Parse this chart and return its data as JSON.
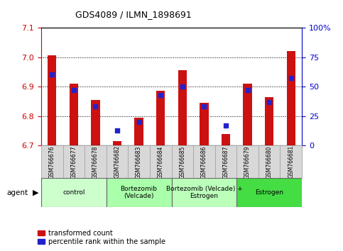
{
  "title": "GDS4089 / ILMN_1898691",
  "samples": [
    "GSM766676",
    "GSM766677",
    "GSM766678",
    "GSM766682",
    "GSM766683",
    "GSM766684",
    "GSM766685",
    "GSM766686",
    "GSM766687",
    "GSM766679",
    "GSM766680",
    "GSM766681"
  ],
  "red_values": [
    7.005,
    6.91,
    6.855,
    6.715,
    6.795,
    6.885,
    6.955,
    6.845,
    6.74,
    6.91,
    6.865,
    7.02
  ],
  "blue_values_pct": [
    60,
    47,
    33,
    13,
    20,
    43,
    50,
    33,
    17,
    47,
    37,
    57
  ],
  "ylim": [
    6.7,
    7.1
  ],
  "yticks_left": [
    6.7,
    6.8,
    6.9,
    7.0,
    7.1
  ],
  "yticks_right": [
    0,
    25,
    50,
    75,
    100
  ],
  "groups": [
    {
      "label": "control",
      "indices": [
        0,
        1,
        2
      ],
      "color": "#ccffcc"
    },
    {
      "label": "Bortezomib\n(Velcade)",
      "indices": [
        3,
        4,
        5
      ],
      "color": "#aaffaa"
    },
    {
      "label": "Bortezomib (Velcade) +\nEstrogen",
      "indices": [
        6,
        7,
        8
      ],
      "color": "#bbffbb"
    },
    {
      "label": "Estrogen",
      "indices": [
        9,
        10,
        11
      ],
      "color": "#44dd44"
    }
  ],
  "bar_color": "#cc1111",
  "dot_color": "#2222cc",
  "bar_width": 0.4,
  "dot_size": 25,
  "left_axis_color": "#cc0000",
  "right_axis_color": "#0000cc",
  "sample_box_color": "#d8d8d8",
  "sample_box_edge": "#aaaaaa"
}
